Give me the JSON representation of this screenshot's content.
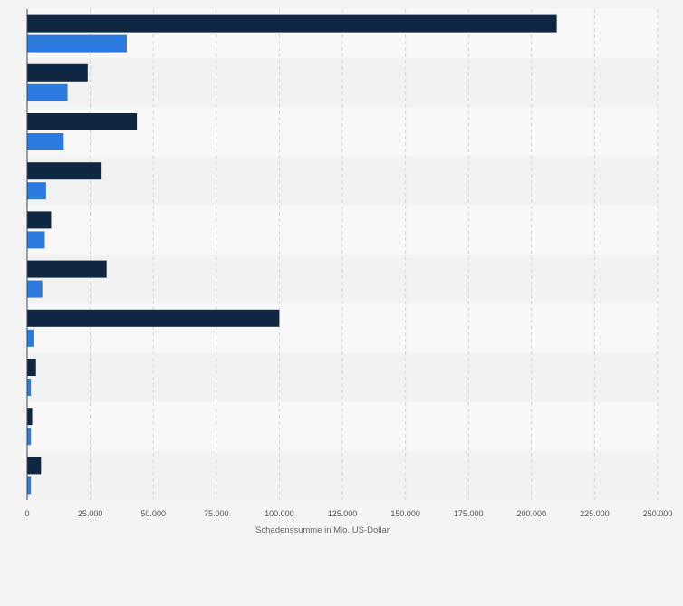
{
  "chart_data": {
    "type": "bar",
    "orientation": "horizontal",
    "xlabel": "Schadenssumme in Mio. US-Dollar",
    "xlim": [
      0,
      250000
    ],
    "x_ticks": [
      0,
      25000,
      50000,
      75000,
      100000,
      125000,
      150000,
      175000,
      200000,
      225000,
      250000
    ],
    "x_tick_labels": [
      "0",
      "25.000",
      "50.000",
      "75.000",
      "100.000",
      "125.000",
      "150.000",
      "175.000",
      "200.000",
      "225.000",
      "250.000"
    ],
    "grid": true,
    "categories": [
      "",
      "",
      "",
      "",
      "",
      "",
      "",
      "",
      "",
      ""
    ],
    "series": [
      {
        "color": "#0f2742",
        "values": [
          210000,
          24000,
          43500,
          29500,
          9500,
          31500,
          100000,
          3500,
          2000,
          5500
        ]
      },
      {
        "color": "#2b7ae0",
        "values": [
          39500,
          16000,
          14500,
          7500,
          7000,
          6000,
          2500,
          1500,
          1500,
          1500
        ]
      }
    ]
  }
}
